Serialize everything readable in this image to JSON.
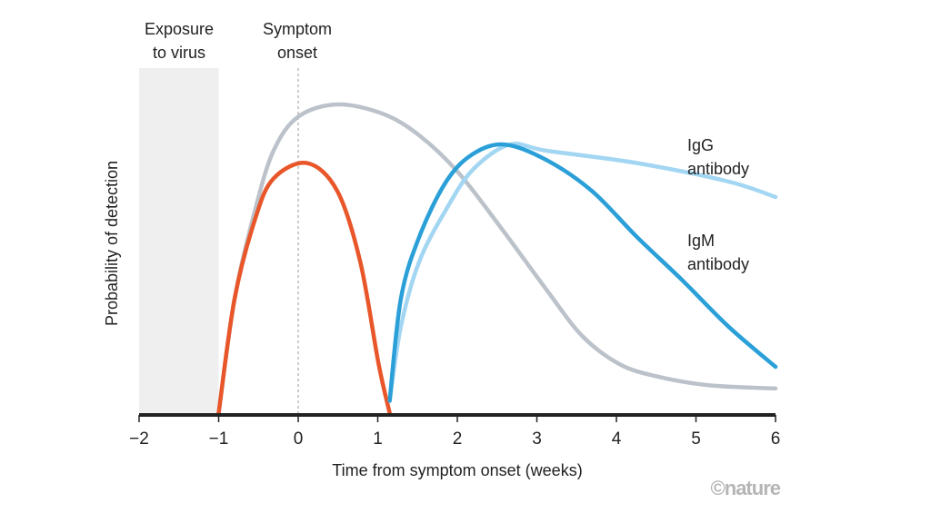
{
  "chart_data": {
    "type": "line",
    "title": "",
    "xlabel": "Time from symptom onset (weeks)",
    "ylabel": "Probability of detection",
    "xlim": [
      -2,
      6
    ],
    "ylim": [
      0,
      1
    ],
    "xticks": [
      "−2",
      "−1",
      "0",
      "1",
      "2",
      "3",
      "4",
      "5",
      "6"
    ],
    "xtick_values": [
      -2,
      -1,
      0,
      1,
      2,
      3,
      4,
      5,
      6
    ],
    "grid": false,
    "annotations": {
      "exposure": [
        "Exposure",
        "to virus"
      ],
      "onset": [
        "Symptom",
        "onset"
      ],
      "igg": [
        "IgG",
        "antibody"
      ],
      "igm": [
        "IgM",
        "antibody"
      ],
      "credit": "©nature"
    },
    "shaded_region": {
      "x": [
        -2,
        -1
      ],
      "color": "#efefef"
    },
    "onset_line_x": 0,
    "series": [
      {
        "name": "grey",
        "color": "#bcc2ca",
        "points": [
          [
            -1,
            0
          ],
          [
            -0.8,
            0.37
          ],
          [
            -0.54,
            0.66
          ],
          [
            -0.31,
            0.85
          ],
          [
            0,
            0.96
          ],
          [
            0.49,
            1.0
          ],
          [
            1.06,
            0.97
          ],
          [
            1.52,
            0.9
          ],
          [
            2.01,
            0.78
          ],
          [
            2.55,
            0.6
          ],
          [
            3.12,
            0.4
          ],
          [
            3.57,
            0.25
          ],
          [
            4.03,
            0.16
          ],
          [
            4.49,
            0.12
          ],
          [
            5.17,
            0.09
          ],
          [
            6,
            0.08
          ]
        ]
      },
      {
        "name": "orange",
        "color": "#e8562a",
        "points": [
          [
            -1,
            0
          ],
          [
            -0.8,
            0.37
          ],
          [
            -0.54,
            0.63
          ],
          [
            -0.31,
            0.76
          ],
          [
            0.11,
            0.81
          ],
          [
            0.49,
            0.72
          ],
          [
            0.78,
            0.49
          ],
          [
            1.01,
            0.16
          ],
          [
            1.15,
            0
          ]
        ]
      },
      {
        "name": "IgG antibody",
        "color": "#a3d6f2",
        "points": [
          [
            1.15,
            0.04
          ],
          [
            1.29,
            0.28
          ],
          [
            1.52,
            0.49
          ],
          [
            1.86,
            0.66
          ],
          [
            2.2,
            0.79
          ],
          [
            2.66,
            0.87
          ],
          [
            3.12,
            0.85
          ],
          [
            4.26,
            0.81
          ],
          [
            5.41,
            0.75
          ],
          [
            6,
            0.7
          ]
        ]
      },
      {
        "name": "IgM antibody",
        "color": "#2a9fd8",
        "points": [
          [
            1.15,
            0.04
          ],
          [
            1.29,
            0.37
          ],
          [
            1.52,
            0.57
          ],
          [
            1.86,
            0.75
          ],
          [
            2.2,
            0.84
          ],
          [
            2.6,
            0.87
          ],
          [
            3.12,
            0.82
          ],
          [
            3.69,
            0.72
          ],
          [
            4.26,
            0.57
          ],
          [
            4.83,
            0.43
          ],
          [
            5.41,
            0.28
          ],
          [
            6,
            0.15
          ]
        ]
      }
    ]
  }
}
